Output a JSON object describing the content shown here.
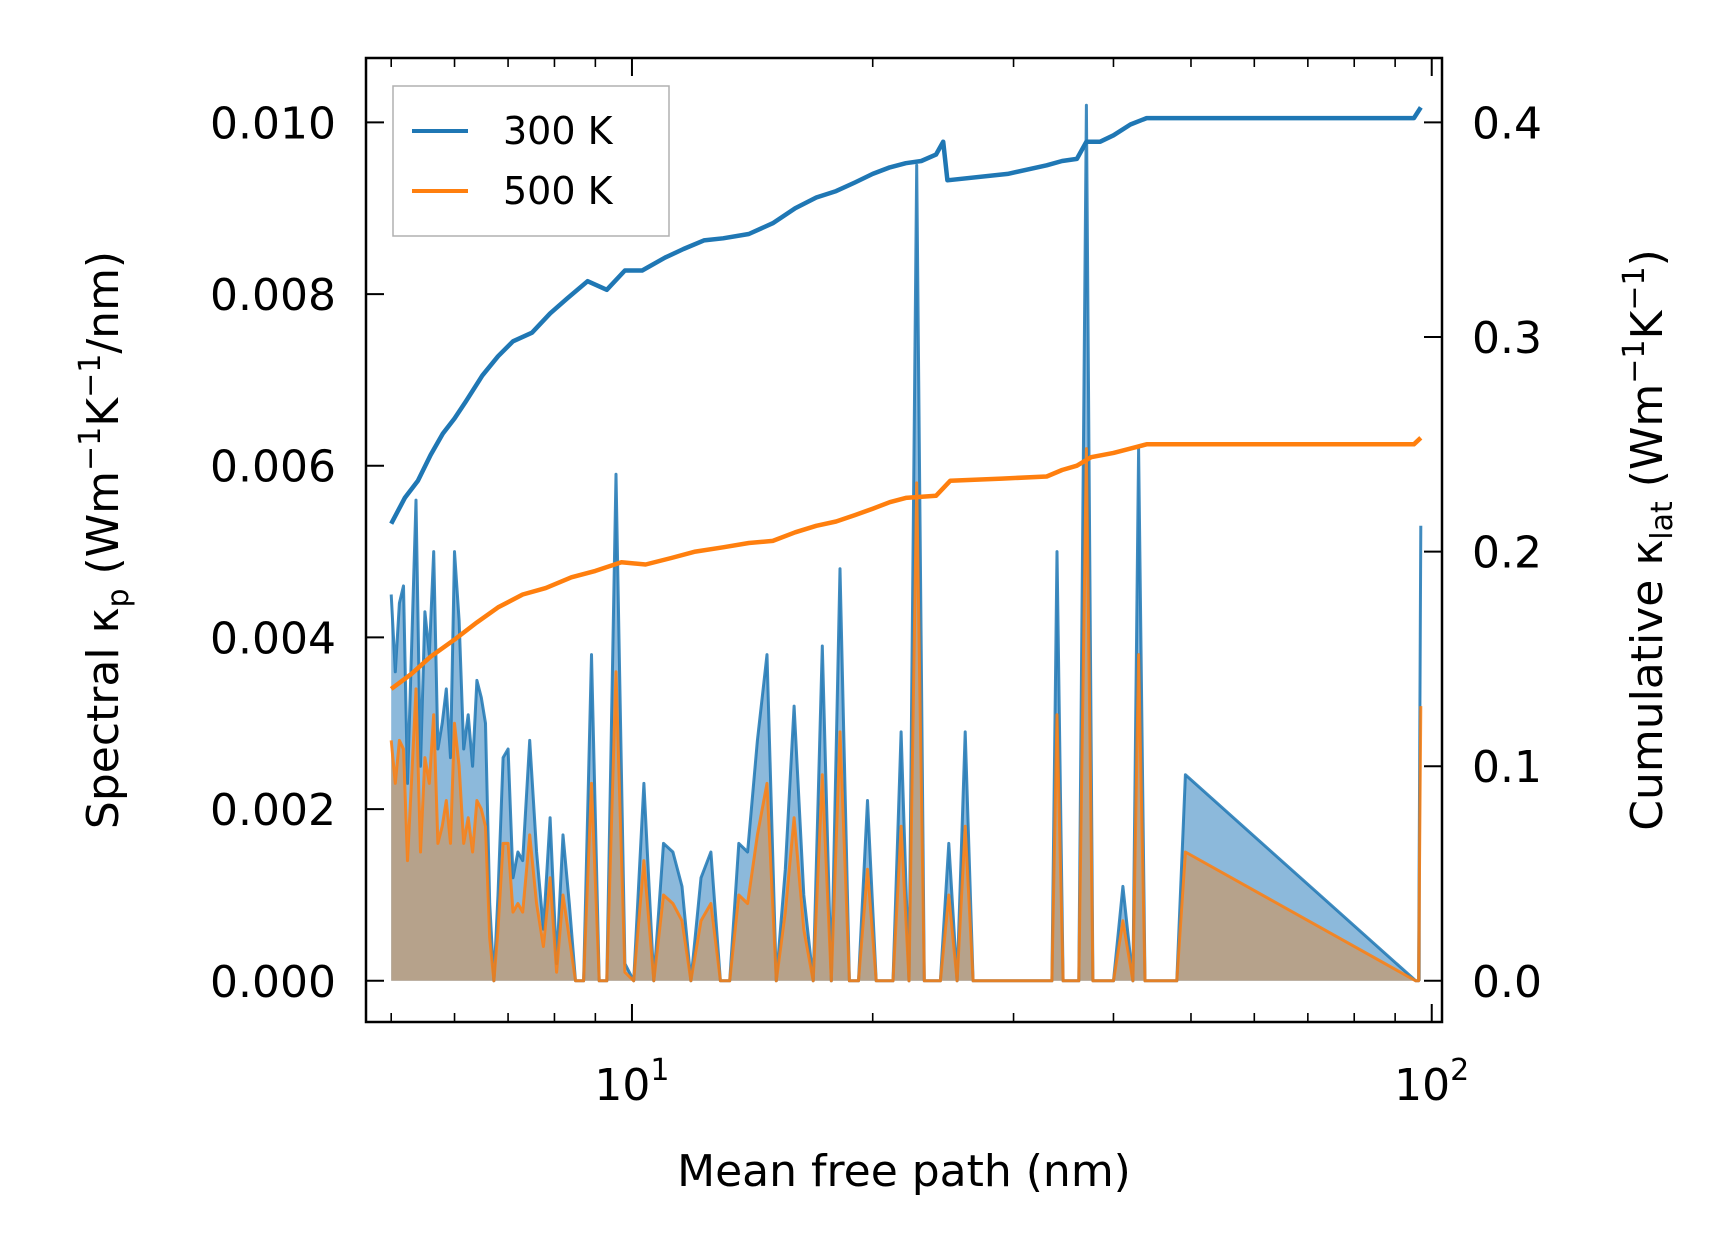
{
  "chart_data": {
    "type": "line",
    "xscale": "log",
    "xlabel": "Mean free path (nm)",
    "ylabel_left": {
      "base": "Spectral κ",
      "sub": "p",
      "units_open": " (Wm",
      "exp1": "−1",
      "mid": "K",
      "exp2": "−1",
      "units_close": "/nm)"
    },
    "ylabel_right": {
      "base": "Cumulative κ",
      "sub": "lat",
      "units_open": " (Wm",
      "exp1": "−1",
      "mid": "K",
      "exp2": "−1",
      "units_close": ")"
    },
    "xlim": [
      4.65,
      103
    ],
    "ylim_left": [
      -0.00048,
      0.01075
    ],
    "ylim_right": [
      -0.0192,
      0.43
    ],
    "x_ticks": [
      {
        "value": 10,
        "base": "10",
        "exp": "1"
      },
      {
        "value": 100,
        "base": "10",
        "exp": "2"
      }
    ],
    "y_left_ticks": [
      {
        "value": 0.0,
        "label": "0.000"
      },
      {
        "value": 0.002,
        "label": "0.002"
      },
      {
        "value": 0.004,
        "label": "0.004"
      },
      {
        "value": 0.006,
        "label": "0.006"
      },
      {
        "value": 0.008,
        "label": "0.008"
      },
      {
        "value": 0.01,
        "label": "0.010"
      }
    ],
    "y_right_ticks": [
      {
        "value": 0.0,
        "label": "0.0"
      },
      {
        "value": 0.1,
        "label": "0.1"
      },
      {
        "value": 0.2,
        "label": "0.2"
      },
      {
        "value": 0.3,
        "label": "0.3"
      },
      {
        "value": 0.4,
        "label": "0.4"
      }
    ],
    "legend": {
      "position": "top-left",
      "entries": [
        {
          "label": "300 K",
          "color": "#1f77b4"
        },
        {
          "label": "500 K",
          "color": "#ff7f0e"
        }
      ]
    },
    "colors": {
      "series_300": "#1f77b4",
      "series_500": "#ff7f0e",
      "fill_300": "#5b9bcc",
      "fill_500": "#c8996a"
    },
    "spectral_series": [
      {
        "name": "300 K",
        "x": [
          5.0,
          5.06,
          5.12,
          5.18,
          5.24,
          5.3,
          5.37,
          5.44,
          5.51,
          5.58,
          5.65,
          5.72,
          5.79,
          5.86,
          5.93,
          6.0,
          6.08,
          6.16,
          6.24,
          6.32,
          6.4,
          6.48,
          6.56,
          6.64,
          6.72,
          6.8,
          6.9,
          7.0,
          7.1,
          7.2,
          7.3,
          7.45,
          7.6,
          7.75,
          7.9,
          8.05,
          8.2,
          8.35,
          8.5,
          8.7,
          8.9,
          9.1,
          9.3,
          9.55,
          9.8,
          10.05,
          10.35,
          10.65,
          10.95,
          11.25,
          11.55,
          11.85,
          12.2,
          12.55,
          12.9,
          13.25,
          13.6,
          13.95,
          14.35,
          14.75,
          15.15,
          15.55,
          15.95,
          16.4,
          16.85,
          17.3,
          17.75,
          18.2,
          18.7,
          19.2,
          19.7,
          20.2,
          20.7,
          21.2,
          21.7,
          22.2,
          22.7,
          23.2,
          23.7,
          24.3,
          24.9,
          25.5,
          26.1,
          26.7,
          27.3,
          28.0,
          28.7,
          29.5,
          33.5,
          34.0,
          34.6,
          35.4,
          36.2,
          37.0,
          37.7,
          38.4,
          40.0,
          41.1,
          42.3,
          43.0,
          43.8,
          44.6,
          45.6,
          46.8,
          48.0,
          49.2,
          95.5,
          96.3,
          96.9
        ],
        "y": [
          0.0045,
          0.0036,
          0.0044,
          0.0046,
          0.0023,
          0.0038,
          0.0056,
          0.0025,
          0.0043,
          0.0038,
          0.005,
          0.0027,
          0.003,
          0.0034,
          0.0026,
          0.005,
          0.0042,
          0.0027,
          0.0031,
          0.0025,
          0.0035,
          0.0033,
          0.003,
          0.0009,
          0.0,
          0.001,
          0.0026,
          0.0027,
          0.0012,
          0.0015,
          0.0014,
          0.0028,
          0.0015,
          0.0006,
          0.0019,
          0.0002,
          0.0017,
          0.0009,
          0.0,
          0.0,
          0.0038,
          0.0,
          0.0,
          0.0059,
          0.0002,
          0.0,
          0.0023,
          0.0,
          0.0016,
          0.0015,
          0.0011,
          0.0,
          0.0012,
          0.0015,
          0.0,
          0.0,
          0.0016,
          0.0015,
          0.0028,
          0.0038,
          0.0,
          0.0013,
          0.0032,
          0.001,
          0.0,
          0.0039,
          0.0,
          0.0048,
          0.0,
          0.0,
          0.0021,
          0.0,
          0.0,
          0.0,
          0.0029,
          0.0,
          0.0095,
          0.0,
          0.0,
          0.0,
          0.0016,
          0.0,
          0.0029,
          0.0,
          0.0,
          0.0,
          0.0,
          0.0,
          0.0,
          0.005,
          0.0,
          0.0,
          0.0,
          0.0102,
          0.0,
          0.0,
          0.0,
          0.0011,
          0.0,
          0.0062,
          0.0,
          0.0,
          0.0,
          0.0,
          0.0,
          0.0024,
          0.0,
          0.0,
          0.0053
        ]
      },
      {
        "name": "500 K",
        "x": [
          5.0,
          5.06,
          5.12,
          5.18,
          5.24,
          5.3,
          5.37,
          5.44,
          5.51,
          5.58,
          5.65,
          5.72,
          5.79,
          5.86,
          5.93,
          6.0,
          6.08,
          6.16,
          6.24,
          6.32,
          6.4,
          6.48,
          6.56,
          6.64,
          6.72,
          6.8,
          6.9,
          7.0,
          7.1,
          7.2,
          7.3,
          7.45,
          7.6,
          7.75,
          7.9,
          8.05,
          8.2,
          8.35,
          8.5,
          8.7,
          8.9,
          9.1,
          9.3,
          9.55,
          9.8,
          10.05,
          10.35,
          10.65,
          10.95,
          11.25,
          11.55,
          11.85,
          12.2,
          12.55,
          12.9,
          13.25,
          13.6,
          13.95,
          14.35,
          14.75,
          15.15,
          15.55,
          15.95,
          16.4,
          16.85,
          17.3,
          17.75,
          18.2,
          18.7,
          19.2,
          19.7,
          20.2,
          20.7,
          21.2,
          21.7,
          22.2,
          22.7,
          23.2,
          23.7,
          24.3,
          24.9,
          25.5,
          26.1,
          26.7,
          27.3,
          28.0,
          28.7,
          29.5,
          33.5,
          34.0,
          34.6,
          35.4,
          36.2,
          37.0,
          37.7,
          38.4,
          40.0,
          41.1,
          42.3,
          43.0,
          43.8,
          44.6,
          45.6,
          46.8,
          48.0,
          49.2,
          95.5,
          96.3,
          96.9
        ],
        "y": [
          0.0028,
          0.0023,
          0.0028,
          0.0027,
          0.0014,
          0.0023,
          0.0034,
          0.0015,
          0.0026,
          0.0023,
          0.0031,
          0.0016,
          0.0018,
          0.0021,
          0.0016,
          0.003,
          0.0025,
          0.0016,
          0.0019,
          0.0015,
          0.0021,
          0.002,
          0.0018,
          0.0005,
          0.0,
          0.0006,
          0.0016,
          0.0016,
          0.0008,
          0.0009,
          0.0008,
          0.0017,
          0.0009,
          0.0004,
          0.0012,
          0.0001,
          0.001,
          0.0005,
          0.0,
          0.0,
          0.0023,
          0.0,
          0.0,
          0.0036,
          0.0001,
          0.0,
          0.0014,
          0.0,
          0.001,
          0.0009,
          0.0007,
          0.0,
          0.0007,
          0.0009,
          0.0,
          0.0,
          0.001,
          0.0009,
          0.0017,
          0.0023,
          0.0,
          0.0008,
          0.0019,
          0.0006,
          0.0,
          0.0024,
          0.0,
          0.0029,
          0.0,
          0.0,
          0.0013,
          0.0,
          0.0,
          0.0,
          0.0018,
          0.0,
          0.0058,
          0.0,
          0.0,
          0.0,
          0.001,
          0.0,
          0.0018,
          0.0,
          0.0,
          0.0,
          0.0,
          0.0,
          0.0,
          0.0031,
          0.0,
          0.0,
          0.0,
          0.0062,
          0.0,
          0.0,
          0.0,
          0.0007,
          0.0,
          0.0038,
          0.0,
          0.0,
          0.0,
          0.0,
          0.0,
          0.0015,
          0.0,
          0.0,
          0.0032
        ]
      }
    ],
    "cumulative_series": [
      {
        "name": "300 K",
        "x": [
          5.0,
          5.2,
          5.4,
          5.6,
          5.8,
          6.0,
          6.2,
          6.5,
          6.8,
          7.1,
          7.5,
          7.9,
          8.3,
          8.8,
          9.3,
          9.8,
          10.3,
          11.0,
          11.6,
          12.3,
          13.0,
          14.0,
          15.0,
          16.0,
          17.0,
          18.0,
          19.0,
          20.0,
          21.0,
          22.0,
          23.0,
          24.0,
          24.5,
          24.8,
          29.5,
          33.0,
          34.5,
          36.0,
          37.0,
          38.5,
          40.0,
          42.0,
          44.0,
          95.0,
          96.9
        ],
        "y": [
          0.213,
          0.225,
          0.233,
          0.245,
          0.255,
          0.262,
          0.27,
          0.282,
          0.291,
          0.298,
          0.302,
          0.311,
          0.318,
          0.326,
          0.322,
          0.331,
          0.331,
          0.337,
          0.341,
          0.345,
          0.346,
          0.348,
          0.353,
          0.36,
          0.365,
          0.368,
          0.372,
          0.376,
          0.379,
          0.381,
          0.382,
          0.385,
          0.391,
          0.373,
          0.376,
          0.38,
          0.382,
          0.383,
          0.391,
          0.391,
          0.394,
          0.399,
          0.402,
          0.402,
          0.407
        ]
      },
      {
        "name": "500 K",
        "x": [
          5.0,
          5.3,
          5.6,
          6.0,
          6.4,
          6.8,
          7.3,
          7.8,
          8.4,
          9.0,
          9.7,
          10.4,
          11.2,
          12.0,
          13.0,
          14.0,
          15.0,
          16.0,
          17.0,
          18.0,
          19.0,
          20.0,
          21.0,
          22.0,
          24.0,
          25.0,
          29.0,
          33.0,
          34.5,
          36.0,
          37.5,
          40.0,
          42.0,
          44.0,
          95.0,
          96.9
        ],
        "y": [
          0.136,
          0.143,
          0.151,
          0.159,
          0.167,
          0.174,
          0.18,
          0.183,
          0.188,
          0.191,
          0.195,
          0.194,
          0.197,
          0.2,
          0.202,
          0.204,
          0.205,
          0.209,
          0.212,
          0.214,
          0.217,
          0.22,
          0.223,
          0.225,
          0.226,
          0.233,
          0.234,
          0.235,
          0.238,
          0.24,
          0.244,
          0.246,
          0.248,
          0.25,
          0.25,
          0.253
        ]
      }
    ]
  }
}
